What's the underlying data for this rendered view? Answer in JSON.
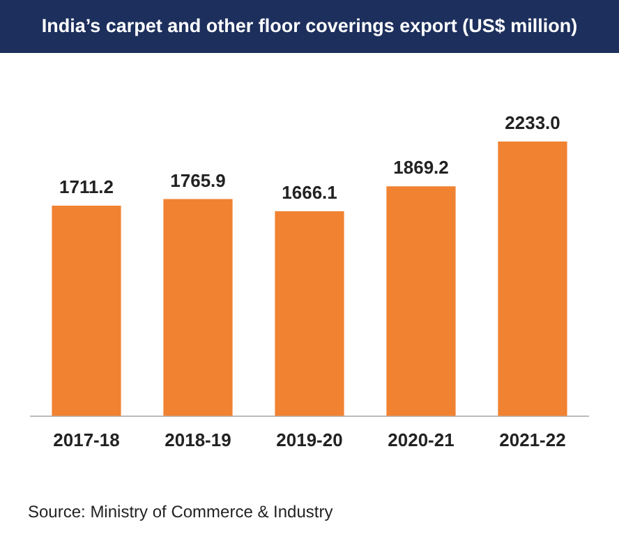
{
  "chart_data": {
    "type": "bar",
    "title": "India’s carpet and other floor coverings export (US$ million)",
    "categories": [
      "2017-18",
      "2018-19",
      "2019-20",
      "2020-21",
      "2021-22"
    ],
    "values": [
      1711.2,
      1765.9,
      1666.1,
      1869.2,
      2233.0
    ],
    "value_labels": [
      "1711.2",
      "1765.9",
      "1666.1",
      "1869.2",
      "2233.0"
    ],
    "color": "#f08232",
    "grid": false,
    "legend": false,
    "tick_labels": "x",
    "annotations": [
      "Source: Ministry of Commerce & Industry"
    ]
  }
}
